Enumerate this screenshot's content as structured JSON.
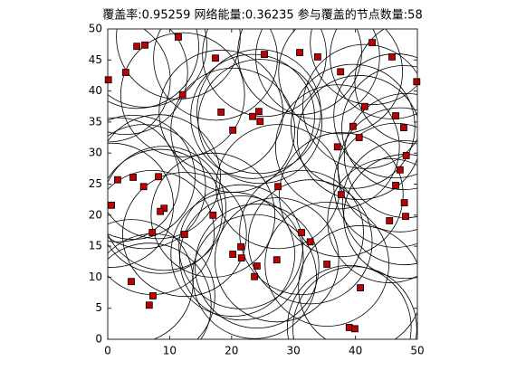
{
  "chart_data": {
    "type": "scatter",
    "title": "覆盖率:0.95259  网络能量:0.36235  参与覆盖的节点数量:58",
    "x": [
      0.1,
      2.9,
      4.7,
      6.0,
      11.4,
      17.4,
      25.3,
      31.0,
      33.9,
      42.7,
      45.9,
      49.9,
      37.6,
      12.1,
      18.3,
      24.4,
      23.4,
      24.6,
      20.2,
      41.5,
      39.6,
      46.5,
      47.8,
      40.6,
      37.1,
      48.2,
      47.2,
      46.5,
      47.9,
      48.1,
      45.5,
      37.7,
      1.6,
      4.1,
      5.8,
      8.2,
      0.6,
      9.1,
      8.5,
      27.5,
      17.0,
      7.2,
      12.4,
      31.3,
      32.7,
      21.5,
      20.2,
      21.6,
      27.3,
      24.1,
      35.4,
      23.7,
      3.8,
      40.8,
      7.3,
      6.7,
      39.0,
      39.9
    ],
    "y": [
      41.8,
      43.0,
      47.2,
      47.4,
      48.7,
      45.3,
      45.9,
      46.2,
      45.5,
      47.8,
      45.5,
      41.5,
      43.1,
      39.4,
      36.6,
      36.7,
      35.9,
      35.1,
      33.7,
      37.5,
      34.3,
      36.0,
      34.1,
      32.5,
      31.0,
      29.6,
      27.3,
      24.8,
      22.0,
      19.8,
      19.1,
      23.3,
      25.7,
      26.1,
      24.6,
      26.2,
      21.6,
      21.1,
      20.6,
      24.6,
      20.0,
      17.2,
      16.9,
      17.2,
      15.7,
      14.9,
      13.7,
      13.1,
      12.8,
      11.8,
      12.1,
      10.1,
      9.3,
      8.3,
      7.0,
      5.5,
      1.9,
      1.7
    ],
    "radius": 10,
    "color": "#c00000",
    "circle_color": "#000000",
    "xlim": [
      0,
      50
    ],
    "ylim": [
      0,
      50
    ],
    "xticks": [
      0,
      10,
      20,
      30,
      40,
      50
    ],
    "yticks": [
      0,
      5,
      10,
      15,
      20,
      25,
      30,
      35,
      40,
      45,
      50
    ]
  }
}
